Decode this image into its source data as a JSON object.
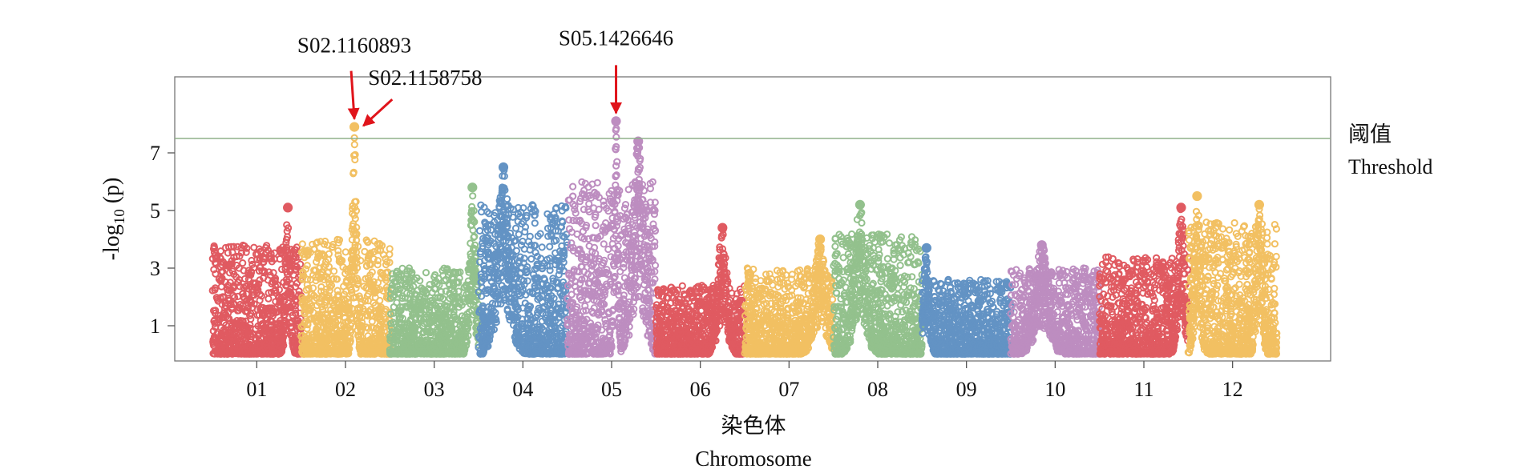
{
  "chart_data": {
    "type": "scatter",
    "xlabel_cn": "染色体",
    "xlabel_en": "Chromosome",
    "ylabel": "-log10 (p)",
    "ylim": [
      0,
      8.5
    ],
    "yticks": [
      1,
      3,
      5,
      7
    ],
    "threshold": {
      "value": 7.5,
      "label_cn": "阈值",
      "label_en": "Threshold",
      "color": "#8fb08a"
    },
    "grid": false,
    "chromosomes": [
      {
        "label": "01",
        "color": "#e05a61",
        "base_max": 3.8,
        "peaks": [
          {
            "pos": 0.85,
            "val": 5.1,
            "w": 0.04
          }
        ]
      },
      {
        "label": "02",
        "color": "#f2c062",
        "base_max": 4.0,
        "peaks": [
          {
            "pos": 0.6,
            "val": 7.9,
            "w": 0.035
          }
        ]
      },
      {
        "label": "03",
        "color": "#93c18d",
        "base_max": 3.0,
        "peaks": [
          {
            "pos": 0.93,
            "val": 5.8,
            "w": 0.05
          }
        ]
      },
      {
        "label": "04",
        "color": "#6393c4",
        "base_max": 5.2,
        "peaks": [
          {
            "pos": 0.28,
            "val": 6.5,
            "w": 0.12
          }
        ]
      },
      {
        "label": "05",
        "color": "#bd8dc0",
        "base_max": 6.0,
        "peaks": [
          {
            "pos": 0.55,
            "val": 8.1,
            "w": 0.03
          },
          {
            "pos": 0.8,
            "val": 7.4,
            "w": 0.1
          }
        ]
      },
      {
        "label": "06",
        "color": "#e05a61",
        "base_max": 2.4,
        "peaks": [
          {
            "pos": 0.75,
            "val": 4.4,
            "w": 0.08
          }
        ]
      },
      {
        "label": "07",
        "color": "#f2c062",
        "base_max": 3.0,
        "peaks": [
          {
            "pos": 0.85,
            "val": 4.0,
            "w": 0.1
          }
        ]
      },
      {
        "label": "08",
        "color": "#93c18d",
        "base_max": 4.2,
        "peaks": [
          {
            "pos": 0.3,
            "val": 5.2,
            "w": 0.1
          }
        ]
      },
      {
        "label": "09",
        "color": "#6393c4",
        "base_max": 2.6,
        "peaks": [
          {
            "pos": 0.05,
            "val": 3.7,
            "w": 0.05
          }
        ]
      },
      {
        "label": "10",
        "color": "#bd8dc0",
        "base_max": 3.0,
        "peaks": [
          {
            "pos": 0.35,
            "val": 3.8,
            "w": 0.12
          }
        ]
      },
      {
        "label": "11",
        "color": "#e05a61",
        "base_max": 3.4,
        "peaks": [
          {
            "pos": 0.92,
            "val": 5.1,
            "w": 0.06
          }
        ]
      },
      {
        "label": "12",
        "color": "#f2c062",
        "base_max": 4.6,
        "peaks": [
          {
            "pos": 0.1,
            "val": 5.5,
            "w": 0.05
          },
          {
            "pos": 0.8,
            "val": 5.2,
            "w": 0.05
          }
        ]
      }
    ],
    "annotations": [
      {
        "label": "S02.1160893",
        "chromosome": "02",
        "pos": 0.6,
        "value": 7.9
      },
      {
        "label": "S02.1158758",
        "chromosome": "02",
        "pos": 0.62,
        "value": 7.8
      },
      {
        "label": "S05.1426646",
        "chromosome": "05",
        "pos": 0.55,
        "value": 8.1
      }
    ],
    "arrow_color": "#e0141b"
  }
}
